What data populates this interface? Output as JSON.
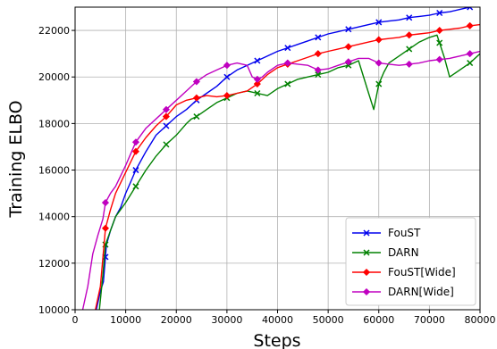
{
  "chart_data": {
    "type": "line",
    "title": "",
    "xlabel": "Steps",
    "ylabel": "Training ELBO",
    "xlim": [
      0,
      80000
    ],
    "ylim": [
      10000,
      23000
    ],
    "xticks": [
      0,
      10000,
      20000,
      30000,
      40000,
      50000,
      60000,
      70000,
      80000
    ],
    "yticks": [
      10000,
      12000,
      14000,
      16000,
      18000,
      20000,
      22000
    ],
    "grid": true,
    "legend_position": "bottom-right",
    "series": [
      {
        "name": "FouST",
        "color": "#0000ee",
        "marker": "x",
        "x": [
          4200,
          5000,
          5600,
          6200,
          7000,
          8000,
          9000,
          10000,
          11000,
          12000,
          13000,
          14000,
          16000,
          18000,
          20000,
          22000,
          24000,
          26000,
          28000,
          30000,
          32000,
          34000,
          36000,
          38000,
          40000,
          42000,
          44000,
          46000,
          48000,
          50000,
          52000,
          54000,
          56000,
          58000,
          60000,
          62000,
          64000,
          66000,
          68000,
          70000,
          72000,
          74000,
          76000,
          78000,
          80000
        ],
        "values": [
          10000,
          10800,
          11200,
          12800,
          13400,
          14000,
          14400,
          15000,
          15500,
          16000,
          16400,
          16800,
          17500,
          17900,
          18300,
          18600,
          19000,
          19300,
          19600,
          20000,
          20300,
          20500,
          20700,
          20900,
          21100,
          21250,
          21400,
          21550,
          21700,
          21850,
          21950,
          22050,
          22150,
          22250,
          22350,
          22400,
          22450,
          22550,
          22600,
          22650,
          22750,
          22800,
          22900,
          23000,
          23100
        ],
        "marker_x": [
          6000,
          12000,
          18000,
          24000,
          30000,
          36000,
          42000,
          48000,
          54000,
          60000,
          66000,
          72000,
          78000
        ]
      },
      {
        "name": "DARN",
        "color": "#008000",
        "marker": "x",
        "x": [
          4800,
          5500,
          6000,
          7000,
          8000,
          10000,
          12000,
          14000,
          16000,
          18000,
          20000,
          22000,
          23000,
          24000,
          26000,
          28000,
          30000,
          32000,
          34000,
          36000,
          38000,
          40000,
          42000,
          44000,
          46000,
          48000,
          50000,
          52000,
          54000,
          56000,
          58000,
          59000,
          60000,
          61000,
          62000,
          64000,
          66000,
          68000,
          70000,
          71500,
          73000,
          74000,
          76000,
          78000,
          80000
        ],
        "values": [
          10000,
          11500,
          12800,
          13400,
          14000,
          14600,
          15300,
          16000,
          16600,
          17100,
          17500,
          18000,
          18200,
          18300,
          18600,
          18900,
          19100,
          19300,
          19400,
          19300,
          19200,
          19500,
          19700,
          19900,
          20000,
          20100,
          20200,
          20400,
          20500,
          20700,
          19300,
          18600,
          19700,
          20200,
          20600,
          20900,
          21200,
          21500,
          21700,
          21800,
          20800,
          20000,
          20300,
          20600,
          21000
        ],
        "marker_x": [
          6000,
          12000,
          18000,
          24000,
          30000,
          36000,
          42000,
          48000,
          54000,
          60000,
          66000,
          72000,
          78000
        ]
      },
      {
        "name": "FouST[Wide]",
        "color": "#ff0000",
        "marker": "D",
        "x": [
          4000,
          5000,
          6000,
          7000,
          8000,
          10000,
          12000,
          14000,
          16000,
          18000,
          20000,
          22000,
          24000,
          26000,
          28000,
          30000,
          32000,
          34000,
          36000,
          38000,
          40000,
          42000,
          44000,
          46000,
          48000,
          50000,
          52000,
          54000,
          56000,
          58000,
          60000,
          62000,
          64000,
          66000,
          68000,
          70000,
          72000,
          74000,
          76000,
          78000,
          80000
        ],
        "values": [
          10000,
          11000,
          13500,
          14300,
          15000,
          15900,
          16800,
          17400,
          17900,
          18300,
          18800,
          19000,
          19100,
          19200,
          19150,
          19200,
          19300,
          19400,
          19700,
          20100,
          20400,
          20550,
          20700,
          20850,
          21000,
          21100,
          21200,
          21300,
          21400,
          21500,
          21600,
          21650,
          21700,
          21800,
          21850,
          21900,
          22000,
          22050,
          22100,
          22200,
          22250
        ],
        "marker_x": [
          6000,
          12000,
          18000,
          24000,
          30000,
          36000,
          42000,
          48000,
          54000,
          60000,
          66000,
          72000,
          78000
        ]
      },
      {
        "name": "DARN[Wide]",
        "color": "#c000c0",
        "marker": "D",
        "x": [
          1500,
          2500,
          3500,
          4500,
          5500,
          6000,
          7000,
          8000,
          10000,
          12000,
          14000,
          16000,
          18000,
          20000,
          22000,
          24000,
          26000,
          28000,
          30000,
          32000,
          34000,
          35000,
          36000,
          37000,
          38000,
          40000,
          42000,
          44000,
          46000,
          48000,
          50000,
          52000,
          54000,
          56000,
          58000,
          60000,
          62000,
          64000,
          66000,
          68000,
          70000,
          72000,
          74000,
          76000,
          78000,
          80000
        ],
        "values": [
          10000,
          11000,
          12400,
          13200,
          13900,
          14600,
          15000,
          15300,
          16200,
          17200,
          17800,
          18200,
          18600,
          19000,
          19400,
          19800,
          20100,
          20300,
          20500,
          20600,
          20500,
          20000,
          19900,
          20000,
          20200,
          20500,
          20600,
          20550,
          20500,
          20300,
          20350,
          20500,
          20650,
          20800,
          20800,
          20600,
          20550,
          20500,
          20550,
          20600,
          20700,
          20750,
          20800,
          20900,
          21000,
          21100
        ],
        "marker_x": [
          6000,
          12000,
          18000,
          24000,
          30000,
          36000,
          42000,
          48000,
          54000,
          60000,
          66000,
          72000,
          78000
        ]
      }
    ]
  }
}
